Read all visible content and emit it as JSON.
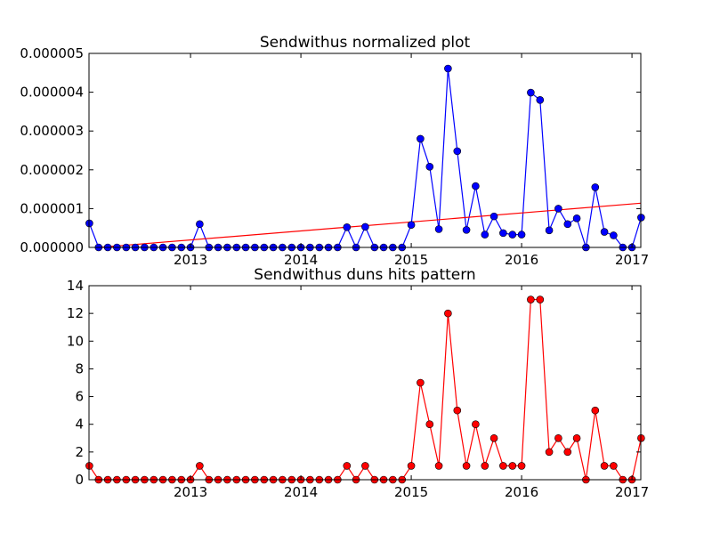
{
  "chart_data": [
    {
      "type": "line",
      "title": "Sendwithus normalized plot",
      "xlabel": "",
      "ylabel": "",
      "xlim": [
        2012.08,
        2017.08
      ],
      "ylim": [
        0,
        5e-06
      ],
      "x_tick_values": [
        2013,
        2014,
        2015,
        2016,
        2017
      ],
      "x_tick_labels": [
        "2013",
        "2014",
        "2015",
        "2016",
        "2017"
      ],
      "y_tick_values": [
        0,
        1e-06,
        2e-06,
        3e-06,
        4e-06,
        5e-06
      ],
      "y_tick_labels": [
        "0.000000",
        "0.000001",
        "0.000002",
        "0.000003",
        "0.000004",
        "0.000005"
      ],
      "grid": false,
      "series": [
        {
          "color": "#0000ff",
          "marker": "circle",
          "x": [
            2012.083,
            2012.167,
            2012.25,
            2012.333,
            2012.417,
            2012.5,
            2012.583,
            2012.667,
            2012.75,
            2012.833,
            2012.917,
            2013.0,
            2013.083,
            2013.167,
            2013.25,
            2013.333,
            2013.417,
            2013.5,
            2013.583,
            2013.667,
            2013.75,
            2013.833,
            2013.917,
            2014.0,
            2014.083,
            2014.167,
            2014.25,
            2014.333,
            2014.417,
            2014.5,
            2014.583,
            2014.667,
            2014.75,
            2014.833,
            2014.917,
            2015.0,
            2015.083,
            2015.167,
            2015.25,
            2015.333,
            2015.417,
            2015.5,
            2015.583,
            2015.667,
            2015.75,
            2015.833,
            2015.917,
            2016.0,
            2016.083,
            2016.167,
            2016.25,
            2016.333,
            2016.417,
            2016.5,
            2016.583,
            2016.667,
            2016.75,
            2016.833,
            2016.917,
            2017.0,
            2017.083
          ],
          "y": [
            6.2e-07,
            0,
            0,
            0,
            0,
            0,
            0,
            0,
            0,
            0,
            0,
            0,
            6e-07,
            0,
            0,
            0,
            0,
            0,
            0,
            0,
            0,
            0,
            0,
            0,
            0,
            0,
            0,
            0,
            5.2e-07,
            0,
            5.3e-07,
            0,
            0,
            0,
            0,
            5.8e-07,
            2.8e-06,
            2.08e-06,
            4.7e-07,
            4.61e-06,
            2.48e-06,
            4.5e-07,
            1.58e-06,
            3.3e-07,
            8e-07,
            3.7e-07,
            3.3e-07,
            3.3e-07,
            3.99e-06,
            3.8e-06,
            4.4e-07,
            1e-06,
            6e-07,
            7.5e-07,
            0,
            1.55e-06,
            4e-07,
            3.1e-07,
            0,
            0,
            7.7e-07
          ]
        },
        {
          "color": "#ff0000",
          "marker": "none",
          "x": [
            2012.083,
            2017.083
          ],
          "y": [
            -2e-08,
            1.14e-06
          ]
        }
      ]
    },
    {
      "type": "line",
      "title": "Sendwithus duns hits pattern",
      "xlabel": "",
      "ylabel": "",
      "xlim": [
        2012.08,
        2017.08
      ],
      "ylim": [
        0,
        14
      ],
      "x_tick_values": [
        2013,
        2014,
        2015,
        2016,
        2017
      ],
      "x_tick_labels": [
        "2013",
        "2014",
        "2015",
        "2016",
        "2017"
      ],
      "y_tick_values": [
        0,
        2,
        4,
        6,
        8,
        10,
        12,
        14
      ],
      "y_tick_labels": [
        "0",
        "2",
        "4",
        "6",
        "8",
        "10",
        "12",
        "14"
      ],
      "grid": false,
      "series": [
        {
          "color": "#ff0000",
          "marker": "circle",
          "x": [
            2012.083,
            2012.167,
            2012.25,
            2012.333,
            2012.417,
            2012.5,
            2012.583,
            2012.667,
            2012.75,
            2012.833,
            2012.917,
            2013.0,
            2013.083,
            2013.167,
            2013.25,
            2013.333,
            2013.417,
            2013.5,
            2013.583,
            2013.667,
            2013.75,
            2013.833,
            2013.917,
            2014.0,
            2014.083,
            2014.167,
            2014.25,
            2014.333,
            2014.417,
            2014.5,
            2014.583,
            2014.667,
            2014.75,
            2014.833,
            2014.917,
            2015.0,
            2015.083,
            2015.167,
            2015.25,
            2015.333,
            2015.417,
            2015.5,
            2015.583,
            2015.667,
            2015.75,
            2015.833,
            2015.917,
            2016.0,
            2016.083,
            2016.167,
            2016.25,
            2016.333,
            2016.417,
            2016.5,
            2016.583,
            2016.667,
            2016.75,
            2016.833,
            2016.917,
            2017.0,
            2017.083
          ],
          "y": [
            1,
            0,
            0,
            0,
            0,
            0,
            0,
            0,
            0,
            0,
            0,
            0,
            1,
            0,
            0,
            0,
            0,
            0,
            0,
            0,
            0,
            0,
            0,
            0,
            0,
            0,
            0,
            0,
            1,
            0,
            1,
            0,
            0,
            0,
            0,
            1,
            7,
            4,
            1,
            12,
            5,
            1,
            4,
            1,
            3,
            1,
            1,
            1,
            13,
            13,
            2,
            3,
            2,
            3,
            0,
            5,
            1,
            1,
            0,
            0,
            3
          ]
        }
      ]
    }
  ]
}
